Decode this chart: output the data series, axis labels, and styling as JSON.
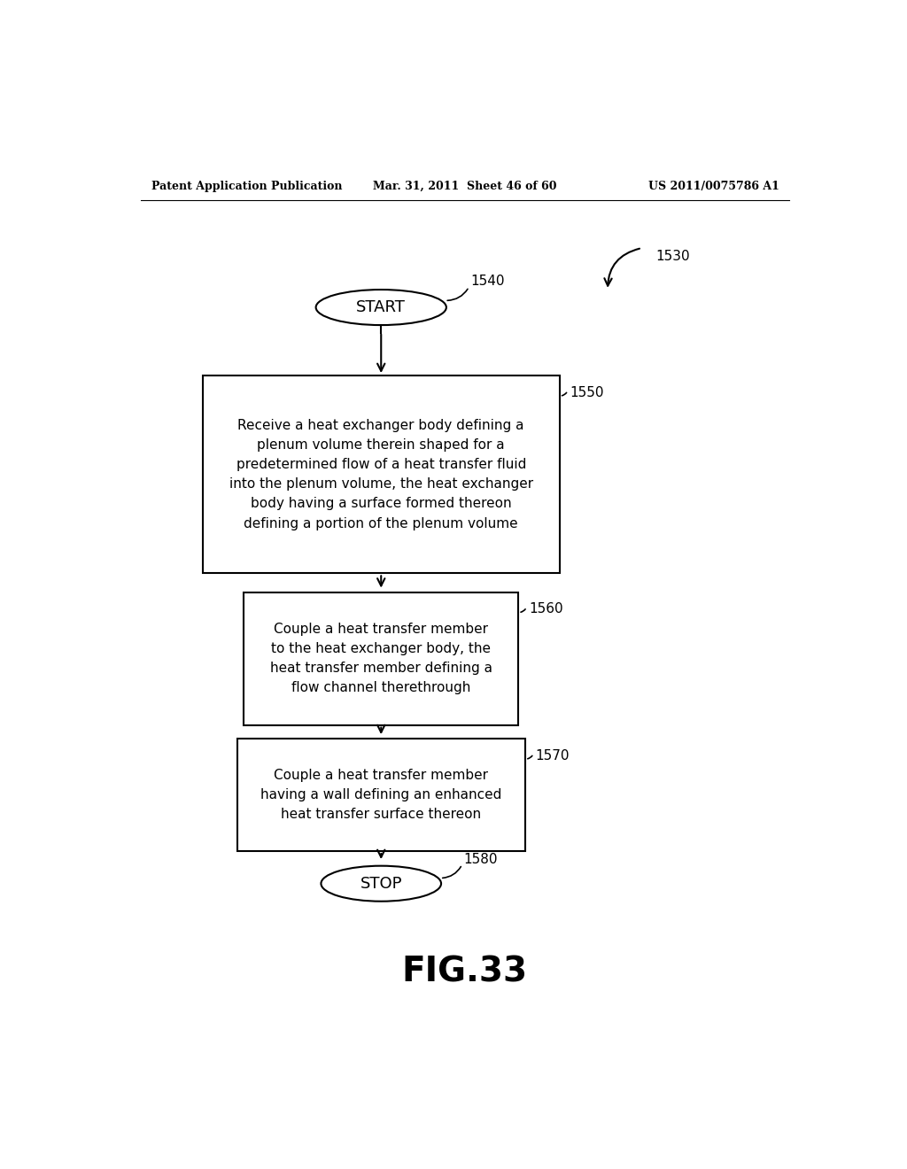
{
  "background_color": "#ffffff",
  "header_left": "Patent Application Publication",
  "header_center": "Mar. 31, 2011  Sheet 46 of 60",
  "header_right": "US 2011/0075786 A1",
  "header_fontsize": 9,
  "figure_label": "FIG.33",
  "figure_label_fontsize": 28,
  "diagram_label": "1530",
  "start_label": "1540",
  "box1_label": "1550",
  "box2_label": "1560",
  "box3_label": "1570",
  "stop_label": "1580",
  "start_text": "START",
  "stop_text": "STOP",
  "box1_text": "Receive a heat exchanger body defining a\nplenum volume therein shaped for a\npredetermined flow of a heat transfer fluid\ninto the plenum volume, the heat exchanger\nbody having a surface formed thereon\ndefining a portion of the plenum volume",
  "box2_text": "Couple a heat transfer member\nto the heat exchanger body, the\nheat transfer member defining a\nflow channel therethrough",
  "box3_text": "Couple a heat transfer member\nhaving a wall defining an enhanced\nheat transfer surface thereon",
  "arrow_color": "#000000",
  "box_edge_color": "#000000",
  "text_color": "#000000",
  "line_width": 1.5
}
